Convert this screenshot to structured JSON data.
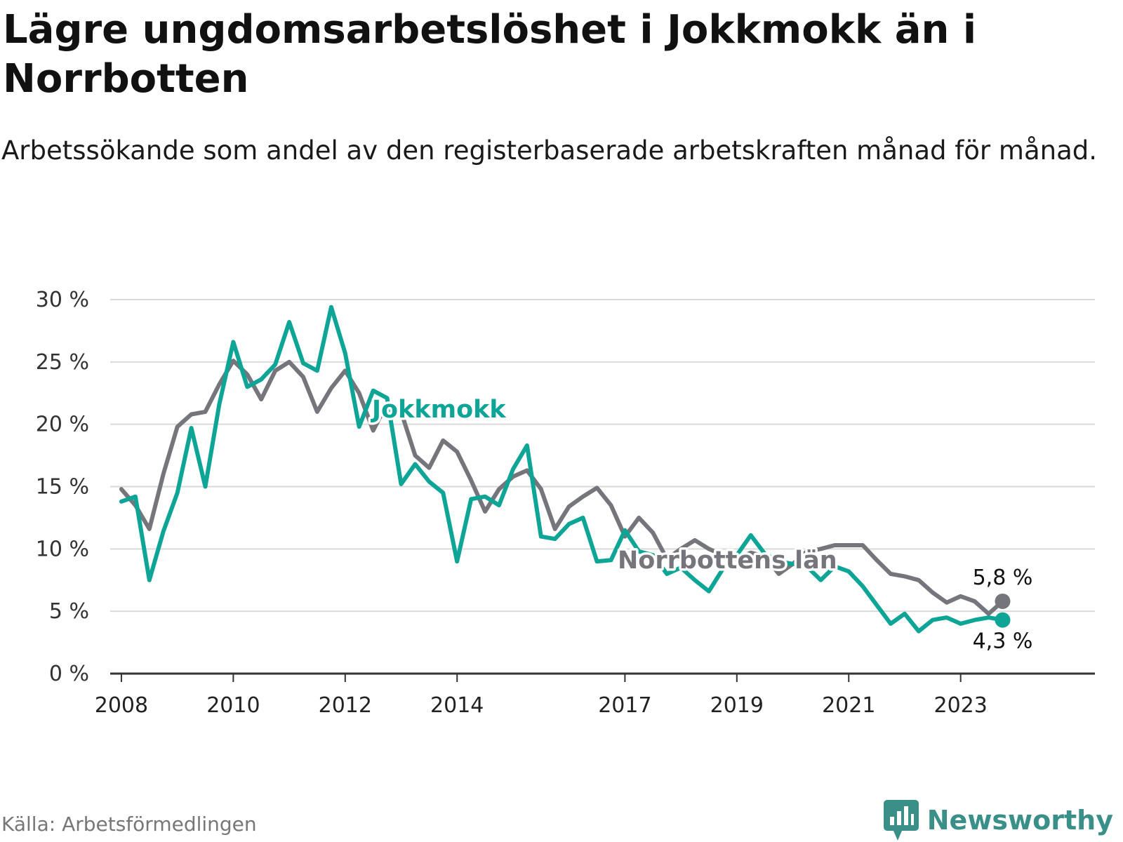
{
  "header": {
    "title": "Lägre ungdomsarbetslöshet i Jokkmokk än i Norrbotten",
    "subtitle": "Arbetssökande som andel av den registerbaserade arbetskraften månad för månad."
  },
  "footer": {
    "source": "Källa: Arbetsförmedlingen",
    "brand": "Newsworthy"
  },
  "colors": {
    "jokkmokk": "#0ea597",
    "norrbotten": "#75757c",
    "grid": "#d9d9d9",
    "axis": "#333333",
    "brand": "#3a8f88"
  },
  "chart_data": {
    "type": "line",
    "title": "Lägre ungdomsarbetslöshet i Jokkmokk än i Norrbotten",
    "xlabel": "",
    "ylabel": "",
    "ylim": [
      0,
      30
    ],
    "xlim": [
      2007.8,
      2025.4
    ],
    "y_ticks": [
      0,
      5,
      10,
      15,
      20,
      25,
      30
    ],
    "y_tick_labels": [
      "0 %",
      "5 %",
      "10 %",
      "15 %",
      "20 %",
      "25 %",
      "30 %"
    ],
    "x_ticks": [
      2008,
      2010,
      2012,
      2014,
      2017,
      2019,
      2021,
      2023
    ],
    "x_tick_labels": [
      "2008",
      "2010",
      "2012",
      "2014",
      "2017",
      "2019",
      "2021",
      "2023"
    ],
    "grid": true,
    "legend": "direct labels on lines",
    "series": [
      {
        "name": "Norrbottens län",
        "color": "#75757c",
        "x": [
          2008.0,
          2008.25,
          2008.5,
          2008.75,
          2009.0,
          2009.25,
          2009.5,
          2009.75,
          2010.0,
          2010.25,
          2010.5,
          2010.75,
          2011.0,
          2011.25,
          2011.5,
          2011.75,
          2012.0,
          2012.25,
          2012.5,
          2012.75,
          2013.0,
          2013.25,
          2013.5,
          2013.75,
          2014.0,
          2014.25,
          2014.5,
          2014.75,
          2015.0,
          2015.25,
          2015.5,
          2015.75,
          2016.0,
          2016.25,
          2016.5,
          2016.75,
          2017.0,
          2017.25,
          2017.5,
          2017.75,
          2018.0,
          2018.25,
          2018.5,
          2018.75,
          2019.0,
          2019.25,
          2019.5,
          2019.75,
          2020.0,
          2020.25,
          2020.5,
          2020.75,
          2021.0,
          2021.25,
          2021.5,
          2021.75,
          2022.0,
          2022.25,
          2022.5,
          2022.75,
          2023.0,
          2023.25,
          2023.5,
          2023.75
        ],
        "values": [
          14.8,
          13.5,
          11.6,
          16.0,
          19.8,
          20.8,
          21.0,
          23.2,
          25.1,
          24.0,
          22.0,
          24.3,
          25.0,
          23.8,
          21.0,
          22.9,
          24.3,
          22.5,
          19.5,
          21.7,
          21.0,
          17.5,
          16.5,
          18.7,
          17.8,
          15.5,
          13.0,
          14.8,
          15.8,
          16.3,
          14.8,
          11.6,
          13.4,
          14.2,
          14.9,
          13.5,
          11.0,
          12.5,
          11.3,
          9.2,
          10.0,
          10.7,
          10.0,
          9.5,
          9.2,
          9.7,
          9.4,
          8.0,
          8.8,
          9.8,
          10.0,
          10.3,
          10.3,
          10.3,
          9.1,
          8.0,
          7.8,
          7.5,
          6.5,
          5.7,
          6.2,
          5.8,
          4.8,
          5.8
        ]
      },
      {
        "name": "Jokkmokk",
        "color": "#0ea597",
        "x": [
          2008.0,
          2008.25,
          2008.5,
          2008.75,
          2009.0,
          2009.25,
          2009.5,
          2009.75,
          2010.0,
          2010.25,
          2010.5,
          2010.75,
          2011.0,
          2011.25,
          2011.5,
          2011.75,
          2012.0,
          2012.25,
          2012.5,
          2012.75,
          2013.0,
          2013.25,
          2013.5,
          2013.75,
          2014.0,
          2014.25,
          2014.5,
          2014.75,
          2015.0,
          2015.25,
          2015.5,
          2015.75,
          2016.0,
          2016.25,
          2016.5,
          2016.75,
          2017.0,
          2017.25,
          2017.5,
          2017.75,
          2018.0,
          2018.25,
          2018.5,
          2018.75,
          2019.0,
          2019.25,
          2019.5,
          2019.75,
          2020.0,
          2020.25,
          2020.5,
          2020.75,
          2021.0,
          2021.25,
          2021.5,
          2021.75,
          2022.0,
          2022.25,
          2022.5,
          2022.75,
          2023.0,
          2023.25,
          2023.5,
          2023.75
        ],
        "values": [
          13.8,
          14.2,
          7.5,
          11.4,
          14.5,
          19.7,
          15.0,
          21.6,
          26.6,
          23.0,
          23.6,
          24.8,
          28.2,
          24.9,
          24.3,
          29.4,
          25.7,
          19.8,
          22.7,
          22.1,
          15.2,
          16.8,
          15.4,
          14.5,
          9.0,
          14.0,
          14.2,
          13.5,
          16.4,
          18.3,
          11.0,
          10.8,
          12.0,
          12.5,
          9.0,
          9.1,
          11.5,
          9.8,
          9.5,
          8.0,
          8.5,
          7.5,
          6.6,
          8.4,
          9.5,
          11.1,
          9.6,
          9.0,
          8.8,
          8.6,
          7.5,
          8.6,
          8.2,
          7.0,
          5.5,
          4.0,
          4.8,
          3.4,
          4.3,
          4.5,
          4.0,
          4.3,
          4.5,
          4.3
        ]
      }
    ],
    "series_labels": {
      "jokkmokk": "Jokkmokk",
      "norrbotten": "Norrbottens län"
    },
    "end_labels": {
      "norrbotten": "5,8 %",
      "jokkmokk": "4,3 %"
    }
  }
}
